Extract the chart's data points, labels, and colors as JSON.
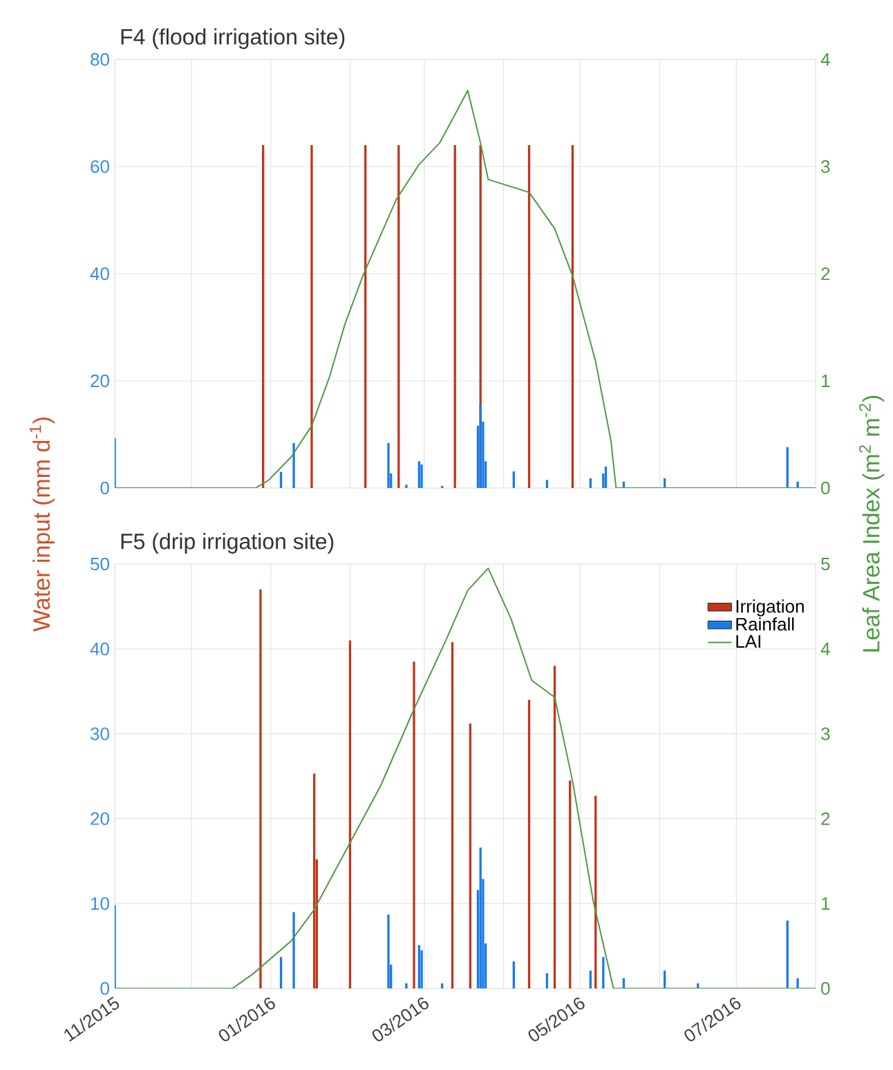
{
  "chart_data": [
    {
      "type": "bar",
      "title": "F4 (flood irrigation site)",
      "ylabel": "Water input (mm d$^{-1}$)",
      "y2label": "Leaf Area Index (m$^{2}$ m$^{-2}$)",
      "xlim": [
        "2015-11-01",
        "2016-08-01"
      ],
      "xticks": [
        {
          "value": "2015-11-01",
          "label": null
        },
        {
          "value": "2015-12-01",
          "label": null
        },
        {
          "value": "2016-01-01",
          "label": null
        },
        {
          "value": "2016-02-01",
          "label": null
        },
        {
          "value": "2016-03-01",
          "label": null
        },
        {
          "value": "2016-04-01",
          "label": null
        },
        {
          "value": "2016-05-01",
          "label": null
        },
        {
          "value": "2016-06-01",
          "label": null
        },
        {
          "value": "2016-07-01",
          "label": null
        },
        {
          "value": "2016-08-01",
          "label": null
        }
      ],
      "ylim": [
        0,
        80
      ],
      "yticks": [
        0,
        20,
        40,
        60,
        80
      ],
      "y2lim": [
        0,
        4
      ],
      "y2ticks": [
        0,
        1,
        2,
        3,
        4
      ],
      "grid": true,
      "tick_labels": "y",
      "series": [
        {
          "color": "#c1361b",
          "x": [
            "2015-12-29",
            "2016-01-17",
            "2016-02-07",
            "2016-02-20",
            "2016-03-13",
            "2016-03-23",
            "2016-04-11",
            "2016-04-28"
          ],
          "values": [
            64,
            64,
            64,
            64,
            64,
            64,
            64,
            64
          ]
        },
        {
          "color": "#1a7be8",
          "x": [
            "2015-11-01",
            "2016-01-05",
            "2016-01-10",
            "2016-02-16",
            "2016-02-17",
            "2016-02-23",
            "2016-02-28",
            "2016-02-29",
            "2016-03-08",
            "2016-03-22",
            "2016-03-23",
            "2016-03-24",
            "2016-03-25",
            "2016-04-05",
            "2016-04-18",
            "2016-05-05",
            "2016-05-10",
            "2016-05-11",
            "2016-05-18",
            "2016-06-03",
            "2016-06-16",
            "2016-07-21",
            "2016-07-25"
          ],
          "values": [
            9.3,
            3.0,
            8.4,
            8.4,
            2.7,
            0.6,
            5.0,
            4.4,
            0.4,
            11.6,
            15.6,
            12.4,
            5.0,
            3.1,
            1.5,
            1.8,
            2.7,
            4.0,
            1.2,
            1.8,
            null,
            7.6,
            1.2
          ]
        },
        {
          "type": "line",
          "axis": "y2",
          "color": "#4e9a45",
          "x": [
            "2015-11-01",
            "2015-12-26",
            "2015-12-31",
            "2016-01-09",
            "2016-01-17",
            "2016-01-24",
            "2016-01-30",
            "2016-02-06",
            "2016-02-19",
            "2016-02-28",
            "2016-03-07",
            "2016-03-12",
            "2016-03-18",
            "2016-03-23",
            "2016-03-26",
            "2016-04-11",
            "2016-04-21",
            "2016-04-28",
            "2016-05-07",
            "2016-05-13",
            "2016-05-15",
            "2016-08-01"
          ],
          "values": [
            0,
            0,
            0.07,
            0.29,
            0.58,
            1.04,
            1.53,
            1.98,
            2.69,
            3.02,
            3.22,
            3.44,
            3.71,
            3.22,
            2.88,
            2.76,
            2.42,
            1.98,
            1.18,
            0.44,
            0,
            0
          ]
        }
      ]
    },
    {
      "type": "bar",
      "title": "F5 (drip irrigation site)",
      "xlim": [
        "2015-11-01",
        "2016-08-01"
      ],
      "xticks": [
        {
          "value": "2015-11-01",
          "label": "11/2015"
        },
        {
          "value": "2015-12-01",
          "label": null
        },
        {
          "value": "2016-01-01",
          "label": "01/2016"
        },
        {
          "value": "2016-02-01",
          "label": null
        },
        {
          "value": "2016-03-01",
          "label": "03/2016"
        },
        {
          "value": "2016-04-01",
          "label": null
        },
        {
          "value": "2016-05-01",
          "label": "05/2016"
        },
        {
          "value": "2016-06-01",
          "label": null
        },
        {
          "value": "2016-07-01",
          "label": "07/2016"
        },
        {
          "value": "2016-08-01",
          "label": null
        }
      ],
      "ylim": [
        0,
        50
      ],
      "yticks": [
        0,
        10,
        20,
        30,
        40,
        50
      ],
      "y2lim": [
        0,
        5
      ],
      "y2ticks": [
        0,
        1,
        2,
        3,
        4,
        5
      ],
      "grid": true,
      "legend": "top right",
      "series": [
        {
          "name": "Irrigation",
          "color": "#c1361b",
          "x": [
            "2015-12-28",
            "2016-01-18",
            "2016-01-19",
            "2016-02-01",
            "2016-02-26",
            "2016-03-12",
            "2016-03-19",
            "2016-04-11",
            "2016-04-21",
            "2016-04-27",
            "2016-05-07"
          ],
          "values": [
            47,
            25.3,
            15.2,
            41,
            38.5,
            40.8,
            31.2,
            34,
            38,
            24.5,
            22.7
          ]
        },
        {
          "name": "Rainfall",
          "color": "#1a7be8",
          "x": [
            "2015-11-01",
            "2016-01-05",
            "2016-01-10",
            "2016-02-16",
            "2016-02-17",
            "2016-02-23",
            "2016-02-28",
            "2016-02-29",
            "2016-03-08",
            "2016-03-22",
            "2016-03-23",
            "2016-03-24",
            "2016-03-25",
            "2016-04-05",
            "2016-04-18",
            "2016-05-05",
            "2016-05-10",
            "2016-05-18",
            "2016-06-03",
            "2016-06-16",
            "2016-07-21",
            "2016-07-25"
          ],
          "values": [
            9.8,
            3.7,
            9.0,
            8.7,
            2.8,
            0.6,
            5.1,
            4.5,
            0.6,
            11.6,
            16.6,
            12.9,
            5.3,
            3.2,
            1.8,
            2.1,
            3.7,
            1.2,
            2.1,
            0.6,
            8.0,
            1.2
          ]
        },
        {
          "type": "line",
          "axis": "y2",
          "name": "LAI",
          "color": "#4e9a45",
          "x": [
            "2015-11-01",
            "2015-12-17",
            "2015-12-25",
            "2016-01-09",
            "2016-01-18",
            "2016-01-31",
            "2016-02-13",
            "2016-02-26",
            "2016-03-09",
            "2016-03-18",
            "2016-03-26",
            "2016-04-04",
            "2016-04-12",
            "2016-04-21",
            "2016-04-28",
            "2016-05-06",
            "2016-05-14",
            "2016-08-01"
          ],
          "values": [
            0,
            0,
            0.17,
            0.56,
            0.93,
            1.66,
            2.39,
            3.29,
            4.07,
            4.69,
            4.95,
            4.35,
            3.63,
            3.43,
            2.44,
            1.04,
            0,
            0
          ]
        }
      ]
    }
  ]
}
